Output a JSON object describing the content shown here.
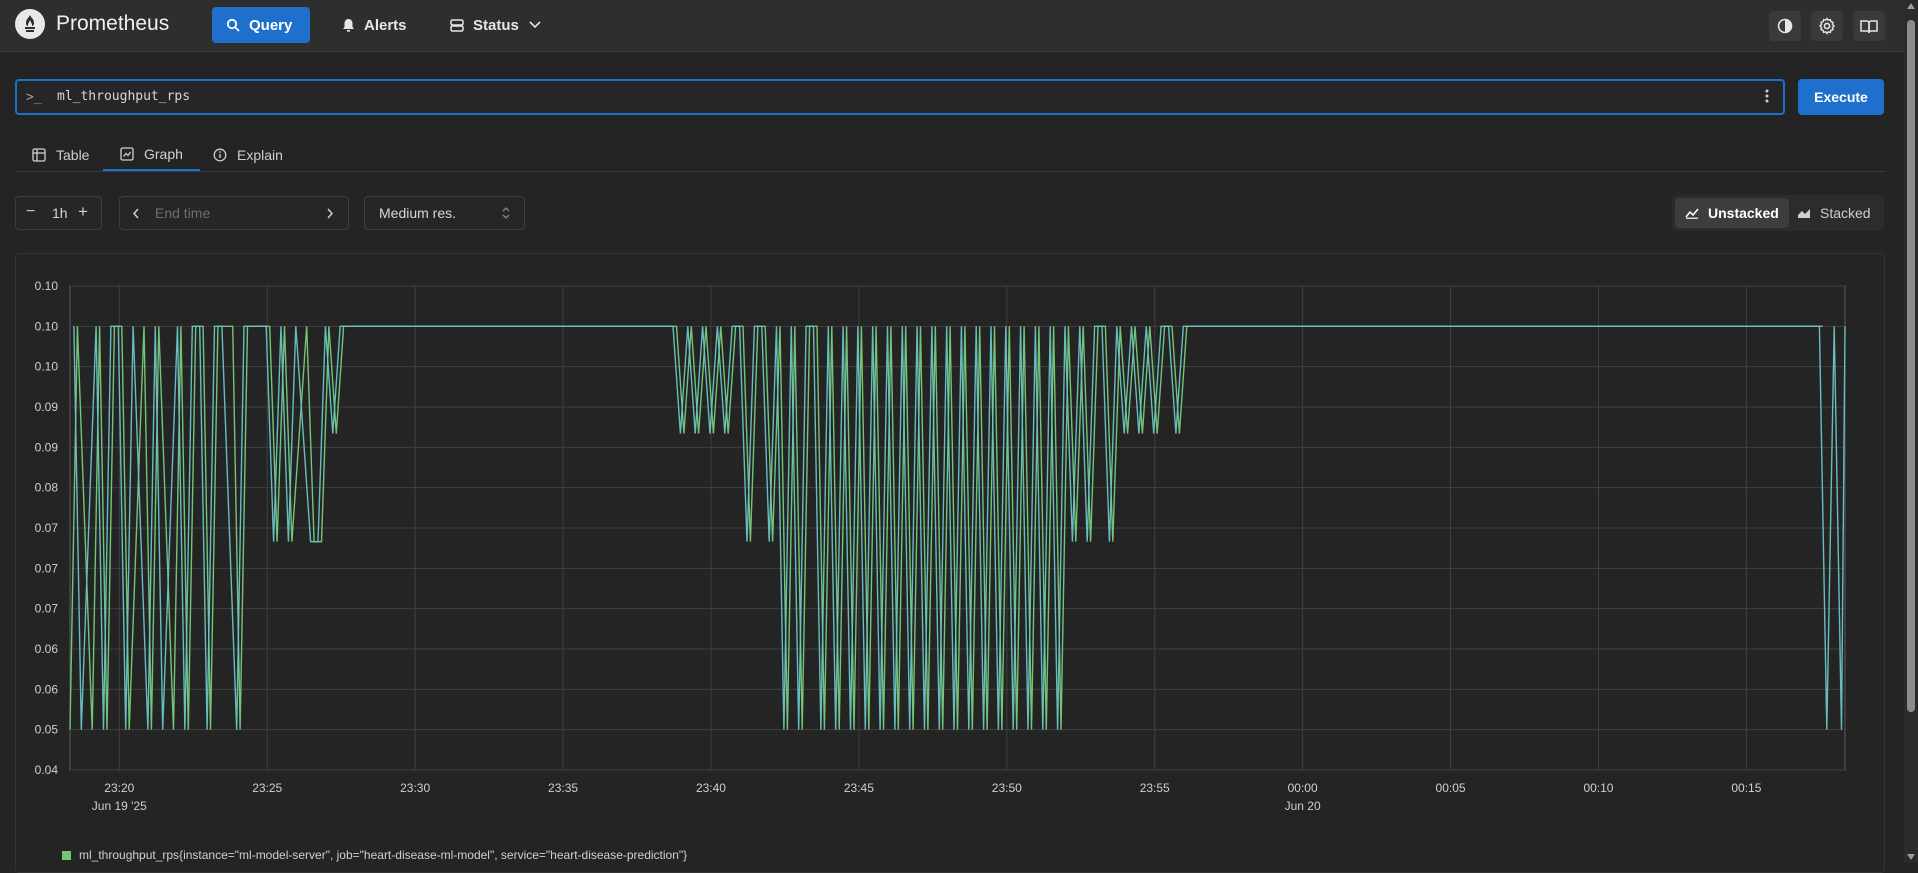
{
  "app": {
    "brand": "Prometheus",
    "nav": {
      "query_label": "Query",
      "alerts_label": "Alerts",
      "status_label": "Status"
    },
    "header_icons": [
      "theme-toggle-icon",
      "settings-icon",
      "docs-book-icon"
    ]
  },
  "query": {
    "expression": "ml_throughput_rps",
    "prompt_symbol": ">_",
    "execute_label": "Execute"
  },
  "tabs": [
    {
      "label": "Table",
      "icon": "table-icon",
      "active": false
    },
    {
      "label": "Graph",
      "icon": "graph-icon",
      "active": true
    },
    {
      "label": "Explain",
      "icon": "info-icon",
      "active": false
    }
  ],
  "controls": {
    "range": "1h",
    "end_time_placeholder": "End time",
    "resolution": "Medium res.",
    "unstacked_label": "Unstacked",
    "stacked_label": "Stacked",
    "active_stack_mode": "Unstacked"
  },
  "colors": {
    "accent": "#1f6fcd",
    "series_1": "#74c476",
    "series_2": "#6cc5c9"
  },
  "chart_data": {
    "type": "line",
    "x_ticks": [
      "23:20",
      "23:25",
      "23:30",
      "23:35",
      "23:40",
      "23:45",
      "23:50",
      "23:55",
      "00:00",
      "00:05",
      "00:10",
      "00:15"
    ],
    "x_tick_sublabels": {
      "23:20": "Jun 19 '25",
      "00:00": "Jun 20"
    },
    "y_ticks": [
      "0.10",
      "0.10",
      "0.10",
      "0.09",
      "0.09",
      "0.08",
      "0.07",
      "0.07",
      "0.07",
      "0.06",
      "0.06",
      "0.05",
      "0.04"
    ],
    "ylim": [
      0.04,
      0.1
    ],
    "x_range": [
      "23:18:20",
      "00:18:20"
    ],
    "grid": true,
    "legend_position": "bottom-left",
    "levels": [
      0.05,
      0.0733,
      0.0867,
      0.1
    ],
    "series": [
      {
        "name": "ml_throughput_rps{instance=\"ml-model-server\", job=\"heart-disease-ml-model\", service=\"heart-disease-prediction\"}",
        "color": "#74c476",
        "t_seconds": [
          0,
          15,
          45,
          60,
          75,
          90,
          105,
          120,
          150,
          165,
          180,
          210,
          225,
          240,
          255,
          270,
          285,
          300,
          330,
          345,
          360,
          375,
          390,
          405,
          420,
          435,
          450,
          480,
          495,
          510,
          525,
          540,
          555,
          570,
          630,
          660,
          675,
          690,
          705,
          720,
          735,
          750,
          780,
          795,
          810,
          825,
          840,
          855,
          870,
          885,
          900,
          915,
          930,
          945,
          960,
          975,
          990,
          1005,
          1020,
          1035,
          1050,
          1065,
          1080,
          1095,
          1110,
          1125,
          1140,
          1155,
          1170,
          1185,
          1200,
          1215,
          1230,
          1245,
          1260,
          1275,
          1290,
          1305,
          1320,
          1335,
          1350,
          1365,
          1380,
          1395,
          1410,
          1425,
          1440,
          1455,
          1470,
          1485,
          1500,
          1515,
          1530,
          1545,
          1560,
          1575,
          1590,
          1605,
          1620,
          1635,
          1650,
          1665,
          1680,
          1695,
          1710,
          1725,
          1740,
          1755,
          1770,
          1785,
          1800,
          1815,
          1830,
          1845,
          1860,
          1875,
          1890,
          1905,
          1920,
          1935,
          1950,
          1965,
          1980,
          1995,
          2010,
          2025,
          2040,
          2055,
          2070,
          2085,
          2100,
          2115,
          2130,
          2145,
          2160,
          2175,
          2190,
          2205,
          2220,
          2235,
          2250,
          2265,
          2280,
          2295,
          2310,
          2325,
          2340,
          2355,
          2370,
          2385,
          2400,
          2415,
          2430,
          2445,
          2460,
          2475,
          2490,
          2505,
          2520,
          2535,
          2550,
          2565,
          2580,
          2595,
          2610,
          2625,
          2640,
          2655,
          2670,
          2685,
          2700,
          2715,
          2730,
          2745,
          2760,
          2775,
          2790,
          2805,
          2820,
          2835,
          2850,
          2865,
          2880,
          2895,
          2910,
          2925,
          2940,
          2955,
          2970,
          2985,
          3000,
          3015,
          3030,
          3045,
          3060,
          3075,
          3090,
          3105,
          3120,
          3135,
          3150,
          3165,
          3180,
          3195,
          3210,
          3225,
          3240,
          3255,
          3270,
          3285,
          3300,
          3315,
          3330,
          3345,
          3360,
          3375,
          3390,
          3405,
          3420,
          3435,
          3450,
          3465,
          3480,
          3495,
          3510,
          3525,
          3540,
          3555,
          3570,
          3585,
          3600
        ],
        "values": [
          0.05,
          0.1,
          0.05,
          0.1,
          0.05,
          0.1,
          0.1,
          0.05,
          0.1,
          0.05,
          0.1,
          0.05,
          0.1,
          0.05,
          0.1,
          0.1,
          0.05,
          0.1,
          0.1,
          0.05,
          0.1,
          0.1,
          0.1,
          0.1,
          0.0733,
          0.1,
          0.0733,
          0.1,
          0.0733,
          0.0733,
          0.1,
          0.0867,
          0.1,
          0.1,
          0.1,
          0.1,
          0.1,
          0.1,
          0.1,
          0.1,
          0.1,
          0.1,
          0.1,
          0.1,
          0.1,
          0.1,
          0.1,
          0.1,
          0.1,
          0.1,
          0.1,
          0.1,
          0.1,
          0.1,
          0.1,
          0.1,
          0.1,
          0.1,
          0.1,
          0.1,
          0.1,
          0.1,
          0.1,
          0.1,
          0.1,
          0.1,
          0.1,
          0.1,
          0.1,
          0.1,
          0.1,
          0.1,
          0.1,
          0.0867,
          0.1,
          0.0867,
          0.1,
          0.0867,
          0.1,
          0.0867,
          0.1,
          0.1,
          0.0733,
          0.1,
          0.1,
          0.0733,
          0.1,
          0.05,
          0.1,
          0.05,
          0.1,
          0.1,
          0.05,
          0.1,
          0.05,
          0.1,
          0.05,
          0.1,
          0.05,
          0.1,
          0.05,
          0.1,
          0.05,
          0.1,
          0.05,
          0.1,
          0.05,
          0.1,
          0.05,
          0.1,
          0.05,
          0.1,
          0.05,
          0.1,
          0.05,
          0.1,
          0.05,
          0.1,
          0.05,
          0.1,
          0.05,
          0.1,
          0.05,
          0.1,
          0.05,
          0.1,
          0.0733,
          0.1,
          0.0733,
          0.1,
          0.1,
          0.0733,
          0.1,
          0.0867,
          0.1,
          0.0867,
          0.1,
          0.0867,
          0.1,
          0.1,
          0.0867,
          0.1,
          0.1,
          0.1,
          0.1,
          0.1,
          0.1,
          0.1,
          0.1,
          0.1,
          0.1,
          0.1,
          0.1,
          0.1,
          0.1,
          0.1,
          0.1,
          0.1,
          0.1,
          0.1,
          0.1,
          0.1,
          0.1,
          0.1,
          0.1,
          0.1,
          0.1,
          0.1,
          0.1,
          0.1,
          0.1,
          0.1,
          0.1,
          0.1,
          0.1,
          0.1,
          0.1,
          0.1,
          0.1,
          0.1,
          0.1,
          0.1,
          0.1,
          0.1,
          0.1,
          0.1,
          0.1,
          0.1,
          0.1,
          0.1,
          0.1,
          0.1,
          0.1,
          0.1,
          0.1,
          0.1,
          0.1,
          0.1,
          0.1,
          0.1,
          0.1,
          0.1,
          0.1,
          0.1,
          0.1,
          0.1,
          0.1,
          0.1,
          0.1,
          0.1,
          0.1,
          0.1,
          0.1,
          0.1,
          0.1,
          0.1,
          0.1,
          0.1,
          0.1,
          0.1,
          0.1,
          0.1,
          0.1,
          0.1,
          0.1,
          0.1,
          0.1,
          0.1
        ]
      },
      {
        "name": "",
        "color": "#6cc5c9",
        "t_seconds": [],
        "values": []
      }
    ]
  },
  "legend": {
    "label": "ml_throughput_rps{instance=\"ml-model-server\", job=\"heart-disease-ml-model\", service=\"heart-disease-prediction\"}",
    "color": "#74c476"
  }
}
